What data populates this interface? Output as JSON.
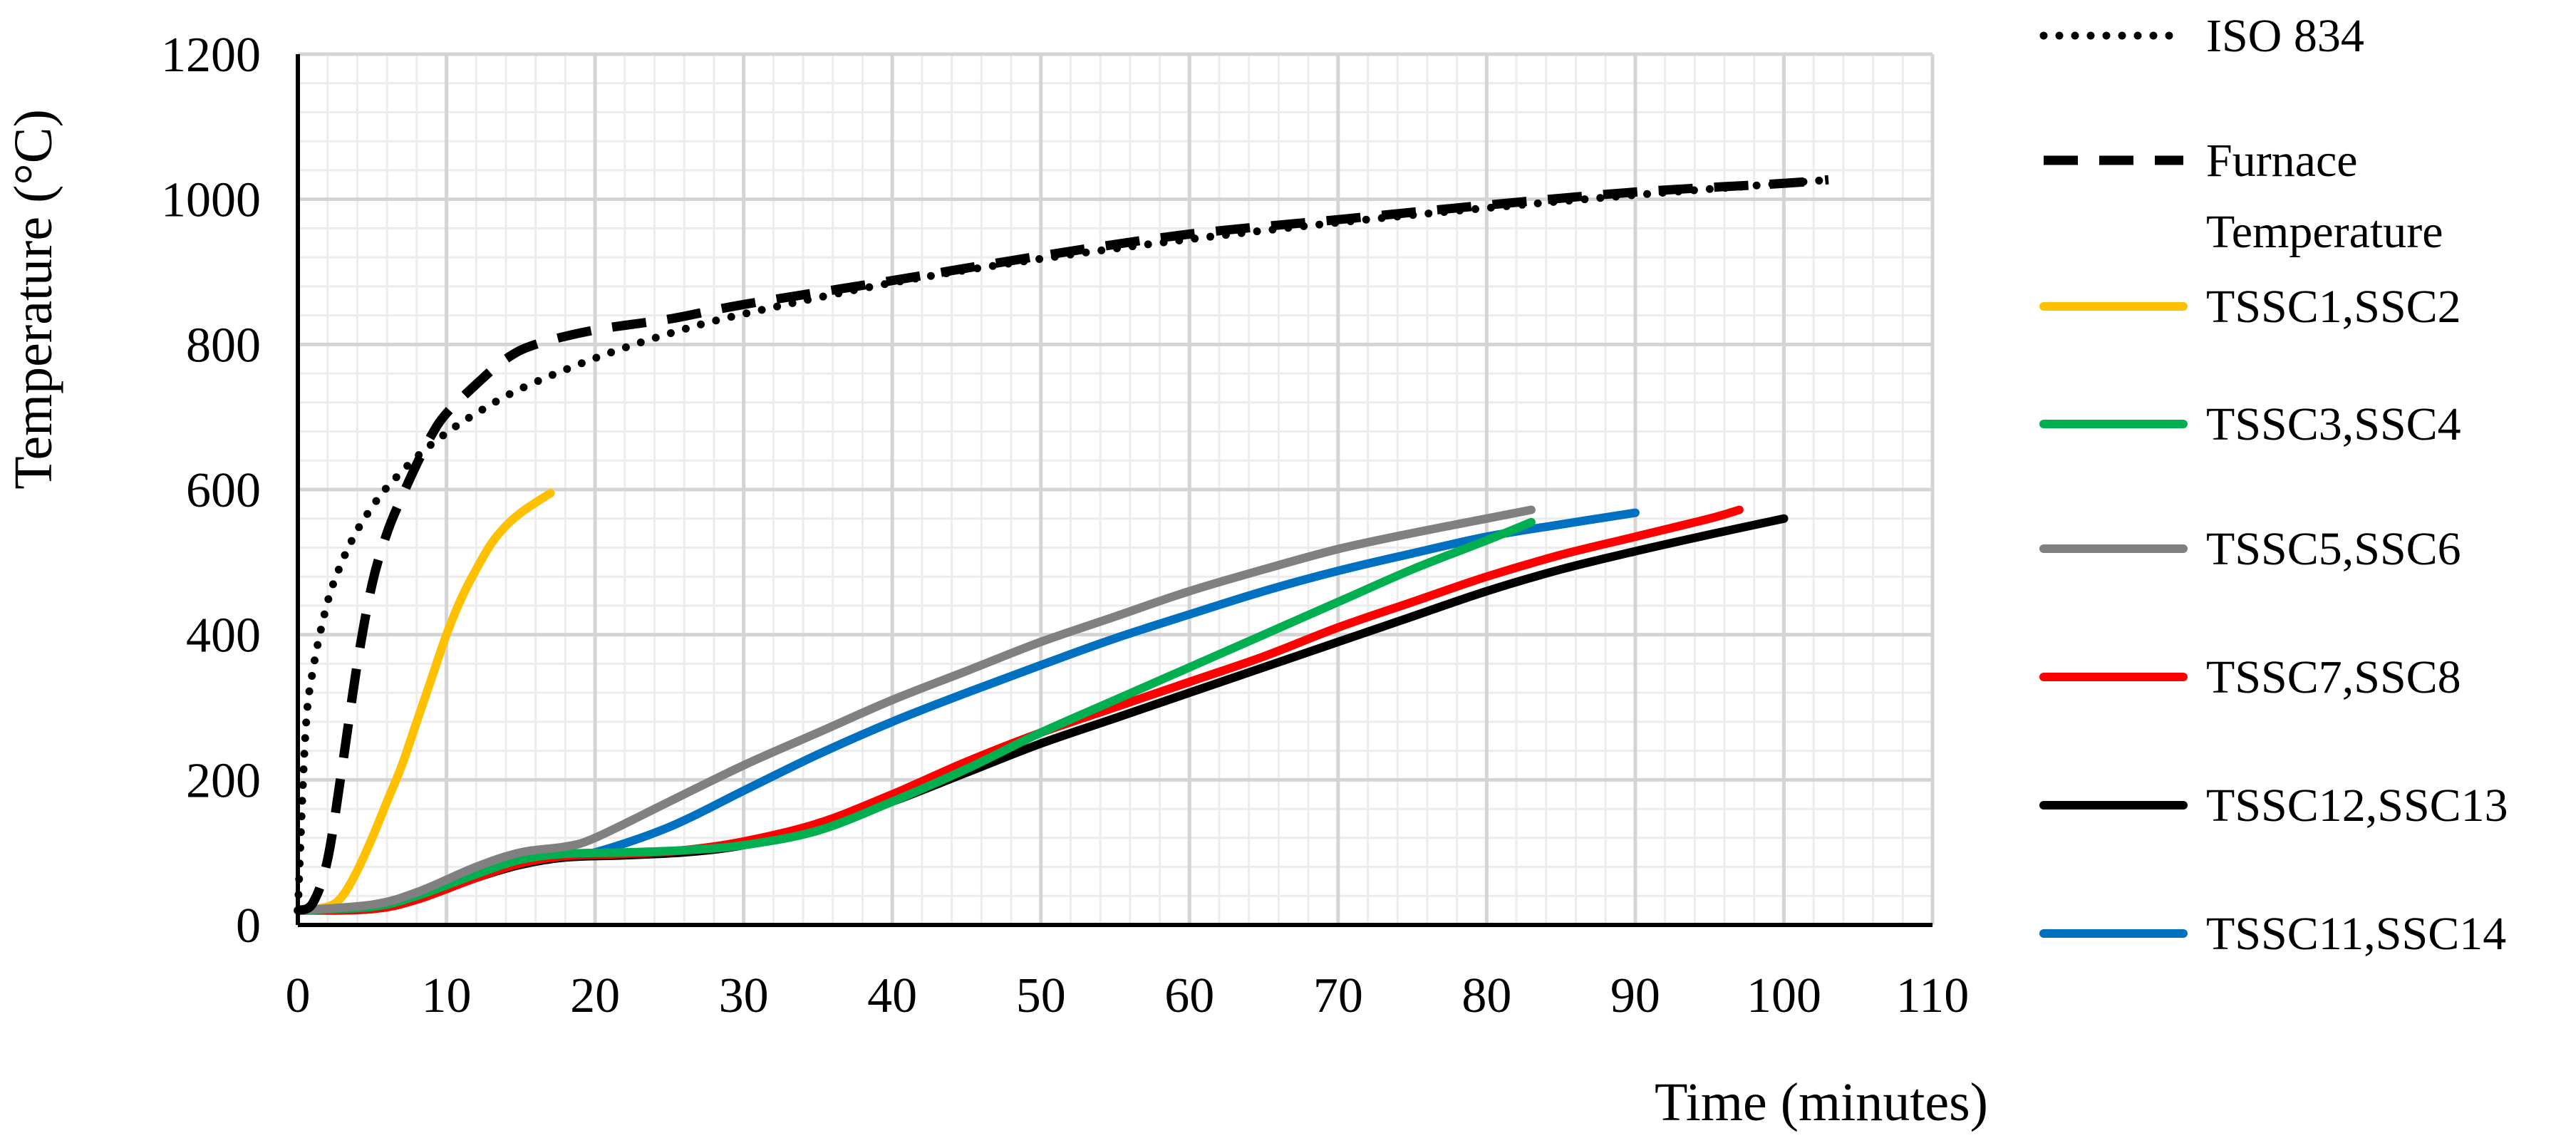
{
  "chart_data": {
    "type": "line",
    "title": "",
    "xlabel": "Time (minutes)",
    "ylabel": "Temperature (°C)",
    "xlim": [
      0,
      110
    ],
    "ylim": [
      0,
      1200
    ],
    "xticks": [
      0,
      10,
      20,
      30,
      40,
      50,
      60,
      70,
      80,
      90,
      100,
      110
    ],
    "yticks": [
      0,
      200,
      400,
      600,
      800,
      1000,
      1200
    ],
    "grid": "major and minor",
    "legend_position": "right",
    "series": [
      {
        "name": "ISO 834",
        "color": "#000000",
        "style": "dotted",
        "points": [
          [
            0,
            20
          ],
          [
            0.5,
            260
          ],
          [
            1,
            350
          ],
          [
            2,
            445
          ],
          [
            3,
            502
          ],
          [
            4,
            544
          ],
          [
            5,
            576
          ],
          [
            6,
            603
          ],
          [
            8,
            645
          ],
          [
            10,
            678
          ],
          [
            12,
            705
          ],
          [
            15,
            739
          ],
          [
            20,
            781
          ],
          [
            25,
            815
          ],
          [
            30,
            842
          ],
          [
            40,
            885
          ],
          [
            50,
            918
          ],
          [
            60,
            945
          ],
          [
            70,
            968
          ],
          [
            80,
            988
          ],
          [
            90,
            1006
          ],
          [
            100,
            1022
          ],
          [
            102.5,
            1026
          ]
        ]
      },
      {
        "name": "Furnace Temperature",
        "color": "#000000",
        "style": "dashed",
        "points": [
          [
            0,
            20
          ],
          [
            1,
            30
          ],
          [
            2,
            90
          ],
          [
            3,
            220
          ],
          [
            4,
            360
          ],
          [
            5,
            470
          ],
          [
            6,
            540
          ],
          [
            7,
            590
          ],
          [
            8,
            635
          ],
          [
            9,
            675
          ],
          [
            10,
            705
          ],
          [
            12,
            745
          ],
          [
            14,
            780
          ],
          [
            16,
            800
          ],
          [
            20,
            820
          ],
          [
            25,
            835
          ],
          [
            30,
            855
          ],
          [
            40,
            888
          ],
          [
            50,
            922
          ],
          [
            60,
            952
          ],
          [
            70,
            972
          ],
          [
            80,
            992
          ],
          [
            90,
            1010
          ],
          [
            100,
            1022
          ],
          [
            103,
            1027
          ]
        ]
      },
      {
        "name": "TSSC1,SSC2",
        "color": "#FFC000",
        "style": "solid",
        "points": [
          [
            0,
            20
          ],
          [
            2,
            25
          ],
          [
            3,
            40
          ],
          [
            4,
            75
          ],
          [
            5,
            120
          ],
          [
            6,
            170
          ],
          [
            7,
            220
          ],
          [
            8,
            280
          ],
          [
            9,
            340
          ],
          [
            10,
            400
          ],
          [
            11,
            450
          ],
          [
            12,
            490
          ],
          [
            13,
            525
          ],
          [
            14,
            550
          ],
          [
            15,
            568
          ],
          [
            16,
            582
          ],
          [
            17,
            595
          ]
        ]
      },
      {
        "name": "TSSC3,SSC4",
        "color": "#00B050",
        "style": "solid",
        "points": [
          [
            0,
            20
          ],
          [
            5,
            25
          ],
          [
            8,
            40
          ],
          [
            12,
            70
          ],
          [
            15,
            90
          ],
          [
            18,
            98
          ],
          [
            22,
            100
          ],
          [
            26,
            103
          ],
          [
            30,
            110
          ],
          [
            35,
            130
          ],
          [
            40,
            170
          ],
          [
            45,
            215
          ],
          [
            50,
            265
          ],
          [
            55,
            310
          ],
          [
            60,
            355
          ],
          [
            65,
            400
          ],
          [
            70,
            445
          ],
          [
            75,
            490
          ],
          [
            80,
            530
          ],
          [
            83,
            555
          ]
        ]
      },
      {
        "name": "TSSC5,SSC6",
        "color": "#808080",
        "style": "solid",
        "points": [
          [
            0,
            20
          ],
          [
            5,
            28
          ],
          [
            8,
            45
          ],
          [
            12,
            80
          ],
          [
            15,
            100
          ],
          [
            18,
            108
          ],
          [
            20,
            120
          ],
          [
            25,
            170
          ],
          [
            30,
            220
          ],
          [
            35,
            265
          ],
          [
            40,
            310
          ],
          [
            45,
            350
          ],
          [
            50,
            390
          ],
          [
            55,
            425
          ],
          [
            60,
            460
          ],
          [
            65,
            490
          ],
          [
            70,
            518
          ],
          [
            75,
            540
          ],
          [
            80,
            560
          ],
          [
            83,
            572
          ]
        ]
      },
      {
        "name": "TSSC7,SSC8",
        "color": "#FF0000",
        "style": "solid",
        "points": [
          [
            0,
            20
          ],
          [
            5,
            22
          ],
          [
            8,
            35
          ],
          [
            12,
            65
          ],
          [
            15,
            85
          ],
          [
            18,
            95
          ],
          [
            22,
            98
          ],
          [
            26,
            103
          ],
          [
            30,
            115
          ],
          [
            35,
            140
          ],
          [
            40,
            180
          ],
          [
            45,
            225
          ],
          [
            50,
            265
          ],
          [
            55,
            300
          ],
          [
            60,
            335
          ],
          [
            65,
            370
          ],
          [
            70,
            410
          ],
          [
            75,
            445
          ],
          [
            80,
            480
          ],
          [
            85,
            510
          ],
          [
            90,
            535
          ],
          [
            95,
            560
          ],
          [
            97,
            572
          ]
        ]
      },
      {
        "name": "TSSC12,SSC13",
        "color": "#000000",
        "style": "solid",
        "points": [
          [
            0,
            20
          ],
          [
            5,
            22
          ],
          [
            8,
            35
          ],
          [
            12,
            65
          ],
          [
            15,
            83
          ],
          [
            18,
            93
          ],
          [
            22,
            96
          ],
          [
            26,
            100
          ],
          [
            30,
            110
          ],
          [
            35,
            135
          ],
          [
            40,
            170
          ],
          [
            45,
            210
          ],
          [
            50,
            250
          ],
          [
            55,
            285
          ],
          [
            60,
            320
          ],
          [
            65,
            355
          ],
          [
            70,
            390
          ],
          [
            75,
            425
          ],
          [
            80,
            460
          ],
          [
            85,
            490
          ],
          [
            90,
            515
          ],
          [
            95,
            538
          ],
          [
            100,
            560
          ]
        ]
      },
      {
        "name": "TSSC11,SSC14",
        "color": "#0070C0",
        "style": "solid",
        "points": [
          [
            0,
            20
          ],
          [
            5,
            22
          ],
          [
            8,
            40
          ],
          [
            12,
            75
          ],
          [
            15,
            97
          ],
          [
            18,
            97
          ],
          [
            20,
            100
          ],
          [
            25,
            135
          ],
          [
            30,
            185
          ],
          [
            35,
            235
          ],
          [
            40,
            280
          ],
          [
            45,
            320
          ],
          [
            50,
            358
          ],
          [
            55,
            395
          ],
          [
            60,
            428
          ],
          [
            65,
            460
          ],
          [
            70,
            488
          ],
          [
            75,
            512
          ],
          [
            80,
            535
          ],
          [
            85,
            552
          ],
          [
            90,
            568
          ]
        ]
      }
    ]
  }
}
